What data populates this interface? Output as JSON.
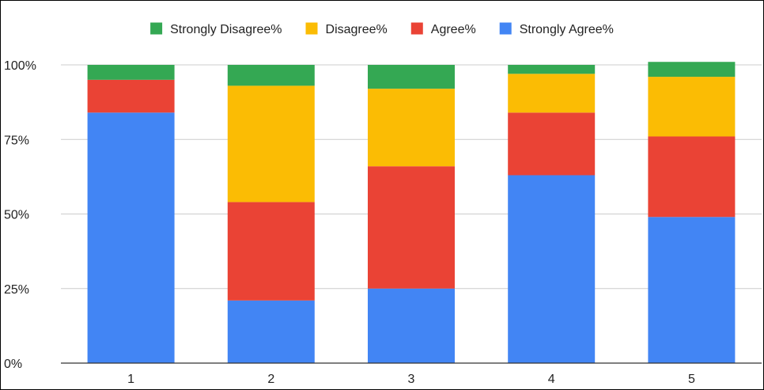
{
  "chart_data": {
    "type": "bar",
    "stacked": true,
    "percent_stacked": true,
    "categories": [
      "1",
      "2",
      "3",
      "4",
      "5"
    ],
    "series": [
      {
        "name": "Strongly Agree%",
        "color": "#4285f4",
        "values": [
          84,
          21,
          25,
          63,
          49
        ]
      },
      {
        "name": "Agree%",
        "color": "#ea4335",
        "values": [
          11,
          33,
          41,
          21,
          27
        ]
      },
      {
        "name": "Disagree%",
        "color": "#fbbc04",
        "values": [
          0,
          39,
          26,
          13,
          20
        ]
      },
      {
        "name": "Strongly Disagree%",
        "color": "#34a853",
        "values": [
          5,
          7,
          8,
          3,
          5
        ]
      }
    ],
    "legend_order": [
      "Strongly Disagree%",
      "Disagree%",
      "Agree%",
      "Strongly Agree%"
    ],
    "legend_position": "top",
    "y_ticks": [
      "0%",
      "25%",
      "50%",
      "75%",
      "100%"
    ],
    "ylim": [
      0,
      100
    ],
    "grid": true,
    "title": "",
    "xlabel": "",
    "ylabel": ""
  }
}
